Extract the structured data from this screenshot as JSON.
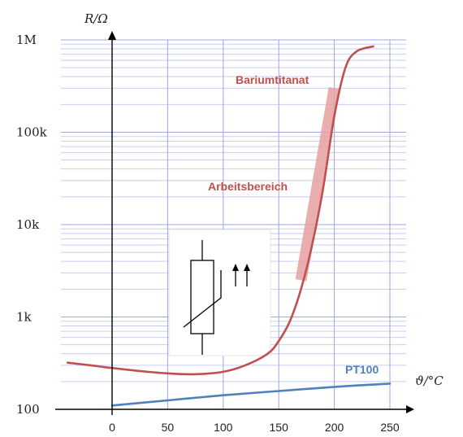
{
  "chart_data": {
    "type": "line",
    "xlabel": "ϑ/°C",
    "ylabel": "R/Ω",
    "x_ticks": [
      0,
      50,
      100,
      150,
      200,
      250
    ],
    "xlim": [
      -40,
      265
    ],
    "y_scale": "log",
    "ylim": [
      100,
      1000000
    ],
    "y_ticks": [
      {
        "value": 100,
        "label": "100"
      },
      {
        "value": 1000,
        "label": "1k"
      },
      {
        "value": 10000,
        "label": "10k"
      },
      {
        "value": 100000,
        "label": "100k"
      },
      {
        "value": 1000000,
        "label": "1M"
      }
    ],
    "grid": true,
    "series": [
      {
        "name": "Bariumtitanat",
        "color": "#c0504d",
        "x": [
          -40,
          -20,
          0,
          25,
          50,
          75,
          100,
          120,
          140,
          150,
          160,
          170,
          180,
          190,
          200,
          210,
          220,
          235
        ],
        "y": [
          320,
          300,
          280,
          260,
          245,
          240,
          255,
          300,
          400,
          550,
          900,
          2000,
          6000,
          25000,
          150000,
          500000,
          750000,
          850000
        ]
      },
      {
        "name": "PT100",
        "color": "#4f81bd",
        "x": [
          0,
          50,
          100,
          150,
          200,
          250
        ],
        "y": [
          110,
          125,
          142,
          158,
          175,
          190
        ]
      }
    ],
    "highlight": {
      "label": "Arbeitsbereich",
      "x": [
        170,
        200
      ],
      "y": [
        2500,
        300000
      ],
      "color": "#e6a0a0"
    },
    "label_colors": {
      "Bariumtitanat": "#c0504d",
      "Arbeitsbereich": "#c0504d",
      "PT100": "#4f81bd"
    },
    "inset": "ptc-thermistor-symbol"
  }
}
